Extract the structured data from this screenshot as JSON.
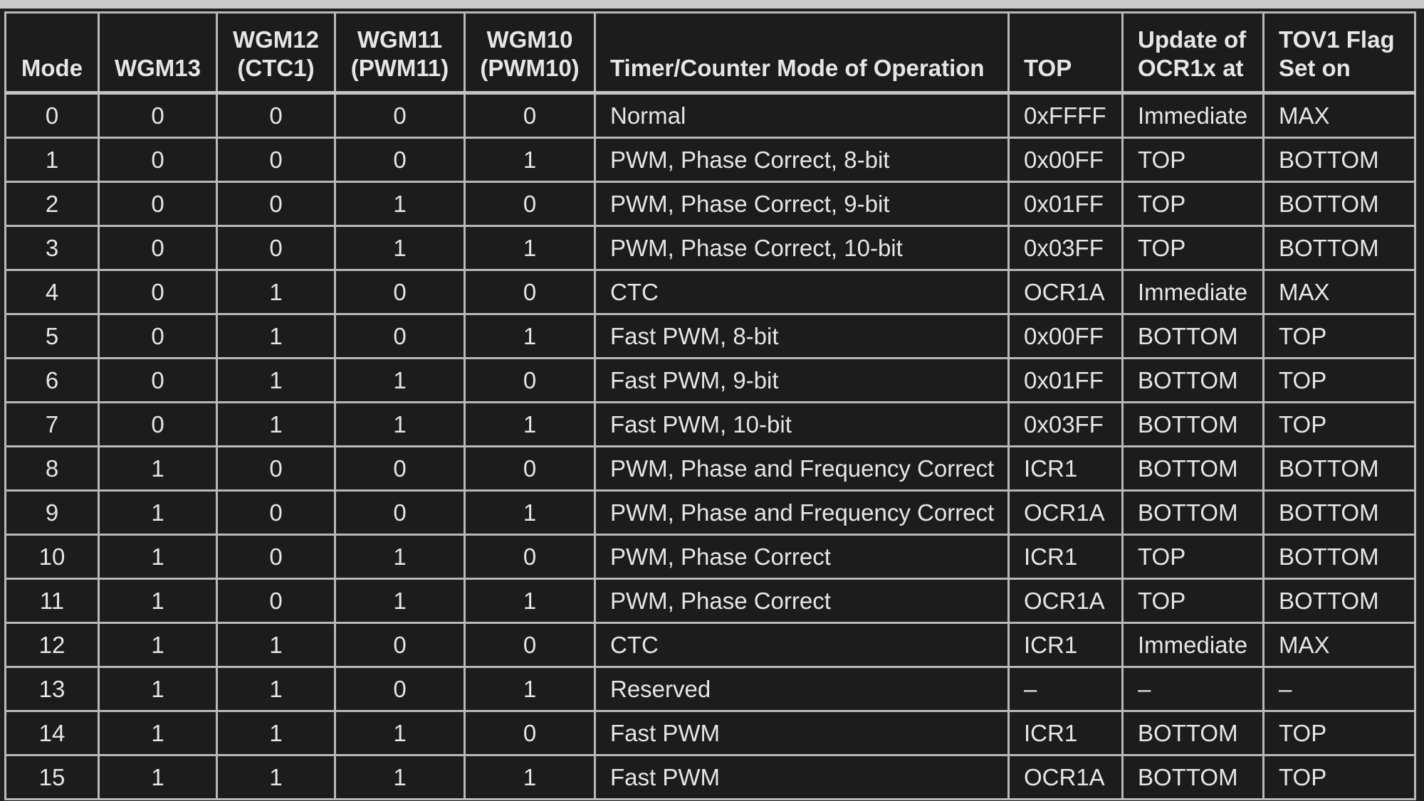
{
  "table": {
    "headers": [
      {
        "lines": [
          "Mode"
        ],
        "align": "c"
      },
      {
        "lines": [
          "WGM13"
        ],
        "align": "c"
      },
      {
        "lines": [
          "WGM12",
          "(CTC1)"
        ],
        "align": "c"
      },
      {
        "lines": [
          "WGM11",
          "(PWM11)"
        ],
        "align": "c"
      },
      {
        "lines": [
          "WGM10",
          "(PWM10)"
        ],
        "align": "c"
      },
      {
        "lines": [
          "Timer/Counter Mode of Operation"
        ],
        "align": "l"
      },
      {
        "lines": [
          "TOP"
        ],
        "align": "l"
      },
      {
        "lines": [
          "Update of",
          "OCR1x at"
        ],
        "align": "l"
      },
      {
        "lines": [
          "TOV1 Flag",
          "Set on"
        ],
        "align": "l"
      }
    ],
    "rows": [
      [
        "0",
        "0",
        "0",
        "0",
        "0",
        "Normal",
        "0xFFFF",
        "Immediate",
        "MAX"
      ],
      [
        "1",
        "0",
        "0",
        "0",
        "1",
        "PWM, Phase Correct, 8-bit",
        "0x00FF",
        "TOP",
        "BOTTOM"
      ],
      [
        "2",
        "0",
        "0",
        "1",
        "0",
        "PWM, Phase Correct, 9-bit",
        "0x01FF",
        "TOP",
        "BOTTOM"
      ],
      [
        "3",
        "0",
        "0",
        "1",
        "1",
        "PWM, Phase Correct, 10-bit",
        "0x03FF",
        "TOP",
        "BOTTOM"
      ],
      [
        "4",
        "0",
        "1",
        "0",
        "0",
        "CTC",
        "OCR1A",
        "Immediate",
        "MAX"
      ],
      [
        "5",
        "0",
        "1",
        "0",
        "1",
        "Fast PWM, 8-bit",
        "0x00FF",
        "BOTTOM",
        "TOP"
      ],
      [
        "6",
        "0",
        "1",
        "1",
        "0",
        "Fast PWM, 9-bit",
        "0x01FF",
        "BOTTOM",
        "TOP"
      ],
      [
        "7",
        "0",
        "1",
        "1",
        "1",
        "Fast PWM, 10-bit",
        "0x03FF",
        "BOTTOM",
        "TOP"
      ],
      [
        "8",
        "1",
        "0",
        "0",
        "0",
        "PWM, Phase and Frequency Correct",
        "ICR1",
        "BOTTOM",
        "BOTTOM"
      ],
      [
        "9",
        "1",
        "0",
        "0",
        "1",
        "PWM, Phase and Frequency Correct",
        "OCR1A",
        "BOTTOM",
        "BOTTOM"
      ],
      [
        "10",
        "1",
        "0",
        "1",
        "0",
        "PWM, Phase Correct",
        "ICR1",
        "TOP",
        "BOTTOM"
      ],
      [
        "11",
        "1",
        "0",
        "1",
        "1",
        "PWM, Phase Correct",
        "OCR1A",
        "TOP",
        "BOTTOM"
      ],
      [
        "12",
        "1",
        "1",
        "0",
        "0",
        "CTC",
        "ICR1",
        "Immediate",
        "MAX"
      ],
      [
        "13",
        "1",
        "1",
        "0",
        "1",
        "Reserved",
        "–",
        "–",
        "–"
      ],
      [
        "14",
        "1",
        "1",
        "1",
        "0",
        "Fast PWM",
        "ICR1",
        "BOTTOM",
        "TOP"
      ],
      [
        "15",
        "1",
        "1",
        "1",
        "1",
        "Fast PWM",
        "OCR1A",
        "BOTTOM",
        "TOP"
      ]
    ]
  }
}
